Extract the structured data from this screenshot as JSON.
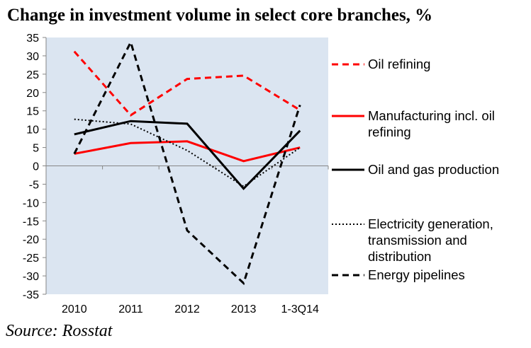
{
  "title": "Change in investment volume in select core branches, %",
  "source": "Source: Rosstat",
  "chart_data": {
    "type": "line",
    "title": "Change in investment volume in select core branches, %",
    "categories": [
      "2010",
      "2011",
      "2012",
      "2013",
      "1-3Q14"
    ],
    "ylim": [
      -35,
      35
    ],
    "yticks": [
      35,
      30,
      25,
      20,
      15,
      10,
      5,
      0,
      -5,
      -10,
      -15,
      -20,
      -25,
      -30,
      -35
    ],
    "ytick_labels": [
      "35",
      "30",
      "25",
      "20",
      "15",
      "10",
      "5",
      "0",
      "-5",
      "-10",
      "-15",
      "-20",
      "-25",
      "-30",
      "-35"
    ],
    "plot_background": "#dbe5f1",
    "grid": false,
    "legend_position": "right",
    "series": [
      {
        "name": "Oil refining",
        "values": [
          31.2,
          13.8,
          23.7,
          24.6,
          15.2
        ],
        "color": "#ff0000",
        "style": "dashed"
      },
      {
        "name": "Manufacturing incl. oil refining",
        "values": [
          3.3,
          6.2,
          6.7,
          1.3,
          5.0
        ],
        "color": "#ff0000",
        "style": "solid"
      },
      {
        "name": "Oil and gas production",
        "values": [
          8.6,
          12.2,
          11.5,
          -6.2,
          9.6
        ],
        "color": "#000000",
        "style": "solid"
      },
      {
        "name": "Electricity generation, transmission and distribution",
        "values": [
          12.7,
          11.4,
          4.2,
          -5.6,
          5.0
        ],
        "color": "#000000",
        "style": "dotted"
      },
      {
        "name": "Energy pipelines",
        "values": [
          3.3,
          33.7,
          -17.6,
          -32.0,
          16.6
        ],
        "color": "#000000",
        "style": "dashed"
      }
    ]
  }
}
